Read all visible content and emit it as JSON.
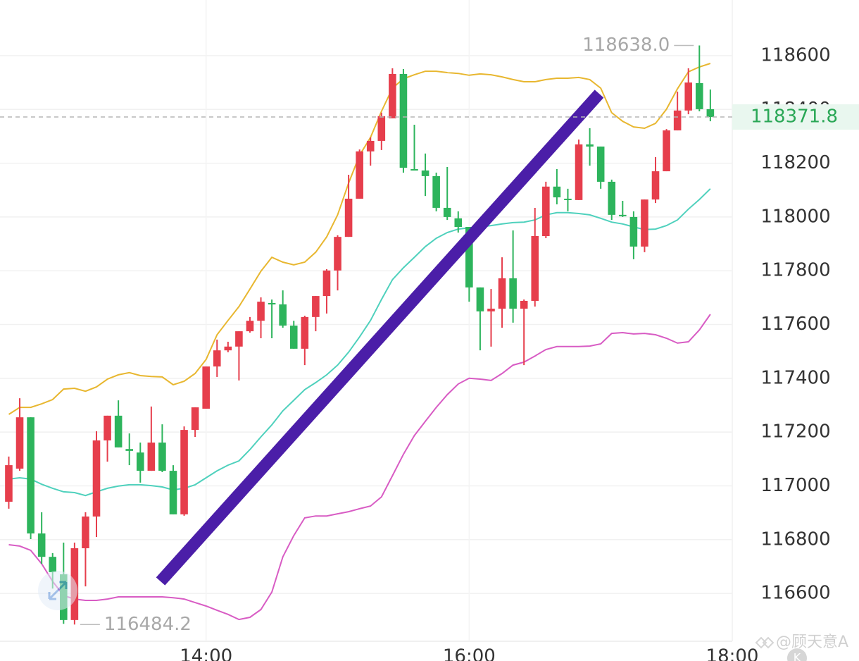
{
  "chart_data": {
    "type": "candlestick",
    "x": [
      "12:30",
      "12:35",
      "12:40",
      "12:45",
      "12:50",
      "12:55",
      "13:00",
      "13:05",
      "13:10",
      "13:15",
      "13:20",
      "13:25",
      "13:30",
      "13:35",
      "13:40",
      "13:45",
      "13:50",
      "13:55",
      "14:00",
      "14:05",
      "14:10",
      "14:15",
      "14:20",
      "14:25",
      "14:30",
      "14:35",
      "14:40",
      "14:45",
      "14:50",
      "14:55",
      "15:00",
      "15:05",
      "15:10",
      "15:15",
      "15:20",
      "15:25",
      "15:30",
      "15:35",
      "15:40",
      "15:45",
      "15:50",
      "15:55",
      "16:00",
      "16:05",
      "16:10",
      "16:15",
      "16:20",
      "16:25",
      "16:30",
      "16:35",
      "16:40",
      "16:45",
      "16:50",
      "16:55",
      "17:00",
      "17:05",
      "17:10",
      "17:15",
      "17:20",
      "17:25",
      "17:30",
      "17:35",
      "17:40",
      "17:45",
      "17:50"
    ],
    "open": [
      116941,
      117064,
      117255,
      116823,
      116736,
      116671,
      116501,
      116768,
      116886,
      117169,
      117261,
      117137,
      117124,
      117056,
      117161,
      117056,
      116894,
      117208,
      117287,
      117444,
      117504,
      117518,
      117575,
      117614,
      117680,
      117675,
      117596,
      117510,
      117628,
      117706,
      117801,
      117926,
      118068,
      118244,
      118283,
      118367,
      118532,
      118178,
      118173,
      118152,
      118034,
      117995,
      117963,
      117738,
      117649,
      117659,
      117772,
      117659,
      117688,
      117929,
      118113,
      118068,
      118063,
      118270,
      118262,
      118131,
      118008,
      118000,
      117890,
      118065,
      118170,
      118322,
      118396,
      118498,
      118401
    ],
    "high": [
      117109,
      117326,
      117255,
      116902,
      116750,
      116789,
      116789,
      116902,
      117203,
      117261,
      117318,
      117195,
      117161,
      117295,
      117229,
      117077,
      117221,
      117292,
      117444,
      117544,
      117536,
      117575,
      117628,
      117701,
      117693,
      117727,
      117614,
      117633,
      117706,
      117806,
      117932,
      118157,
      118251,
      118296,
      118388,
      118553,
      118550,
      118343,
      118236,
      118165,
      118186,
      118021,
      117963,
      117738,
      117732,
      117850,
      117950,
      117693,
      118034,
      118131,
      118178,
      118105,
      118288,
      118330,
      118262,
      118139,
      118060,
      118021,
      118065,
      118223,
      118327,
      118466,
      118553,
      118638.0,
      118474
    ],
    "low": [
      116915,
      117056,
      116802,
      116710,
      116618,
      116487,
      116484.2,
      116626,
      116810,
      117090,
      117143,
      117077,
      117012,
      117056,
      117051,
      116894,
      116889,
      117182,
      117287,
      117405,
      117497,
      117392,
      117570,
      117549,
      117549,
      117588,
      117510,
      117449,
      117575,
      117641,
      117727,
      117926,
      118068,
      118191,
      118249,
      118367,
      118165,
      118173,
      118078,
      118021,
      117989,
      117942,
      117685,
      117504,
      117518,
      117588,
      117607,
      117449,
      117667,
      117921,
      118047,
      118021,
      118063,
      118191,
      118105,
      117989,
      118000,
      117843,
      117869,
      118052,
      118170,
      118322,
      118382,
      118393,
      118356
    ],
    "close": [
      117077,
      117255,
      116823,
      116736,
      116679,
      116501,
      116768,
      116886,
      117169,
      117261,
      117143,
      117130,
      117056,
      117161,
      117056,
      116894,
      117208,
      117292,
      117444,
      117504,
      117518,
      117575,
      117614,
      117685,
      117675,
      117596,
      117510,
      117628,
      117706,
      117801,
      117926,
      118068,
      118244,
      118283,
      118375,
      118532,
      118183,
      118173,
      118152,
      118034,
      118000,
      117963,
      117738,
      117649,
      117659,
      117772,
      117659,
      117688,
      117929,
      118113,
      118073,
      118063,
      118270,
      118262,
      118131,
      118008,
      118005,
      117890,
      118065,
      118170,
      118322,
      118396,
      118500,
      118401,
      118371.8
    ],
    "up_color": "#e63e4c",
    "down_color": "#2db45c",
    "bands": [
      {
        "color": "#e8b730",
        "values": [
          117266,
          117292,
          117292,
          117305,
          117321,
          117360,
          117363,
          117352,
          117368,
          117397,
          117413,
          117421,
          117410,
          117407,
          117405,
          117376,
          117389,
          117418,
          117470,
          117562,
          117615,
          117667,
          117732,
          117798,
          117850,
          117832,
          117822,
          117832,
          117869,
          117926,
          118008,
          118126,
          118230,
          118296,
          118393,
          118479,
          118514,
          118529,
          118542,
          118542,
          118537,
          118534,
          118527,
          118532,
          118529,
          118521,
          118511,
          118503,
          118503,
          118511,
          118516,
          118516,
          118519,
          118511,
          118479,
          118388,
          118356,
          118335,
          118330,
          118348,
          118401,
          118477,
          118540,
          118558,
          118571
        ]
      },
      {
        "color": "#4fd1bd",
        "values": [
          117025,
          117030,
          117025,
          117006,
          116991,
          116978,
          116975,
          116964,
          116978,
          116991,
          116999,
          117004,
          117004,
          117001,
          116996,
          116985,
          116991,
          117004,
          117030,
          117056,
          117077,
          117093,
          117135,
          117182,
          117227,
          117279,
          117318,
          117358,
          117384,
          117413,
          117449,
          117497,
          117554,
          117615,
          117693,
          117767,
          117811,
          117850,
          117890,
          117921,
          117942,
          117955,
          117960,
          117963,
          117968,
          117974,
          117979,
          117981,
          117989,
          118008,
          118016,
          118016,
          118013,
          118008,
          117995,
          117981,
          117974,
          117963,
          117953,
          117955,
          117968,
          117989,
          118029,
          118065,
          118105
        ]
      },
      {
        "color": "#d85cc4",
        "values": [
          116781,
          116776,
          116760,
          116710,
          116645,
          116592,
          116579,
          116574,
          116574,
          116579,
          116587,
          116587,
          116587,
          116587,
          116587,
          116584,
          116579,
          116566,
          116553,
          116537,
          116522,
          116503,
          116511,
          116540,
          116605,
          116736,
          116815,
          116881,
          116888,
          116888,
          116896,
          116904,
          116915,
          116925,
          116959,
          117038,
          117117,
          117187,
          117240,
          117292,
          117339,
          117379,
          117400,
          117397,
          117392,
          117418,
          117449,
          117460,
          117483,
          117507,
          117518,
          117518,
          117518,
          117520,
          117528,
          117567,
          117570,
          117565,
          117567,
          117562,
          117549,
          117531,
          117536,
          117580,
          117638
        ]
      }
    ],
    "annotations": [
      {
        "value": 118638.0,
        "label": "118638.0"
      },
      {
        "value": 116484.2,
        "label": "116484.2"
      },
      {
        "value": 118371.8,
        "label": "118371.8"
      }
    ],
    "xlim": [
      "12:26",
      "18:00"
    ],
    "xticks": [
      "14:00",
      "16:00",
      "18:00"
    ],
    "ylim": [
      116422,
      118807
    ],
    "yticks": [
      116600,
      116800,
      117000,
      117200,
      117400,
      117600,
      117800,
      118000,
      118200,
      118400,
      118600
    ],
    "grid": true
  },
  "watermark": "@顾天意A",
  "badge": "K"
}
